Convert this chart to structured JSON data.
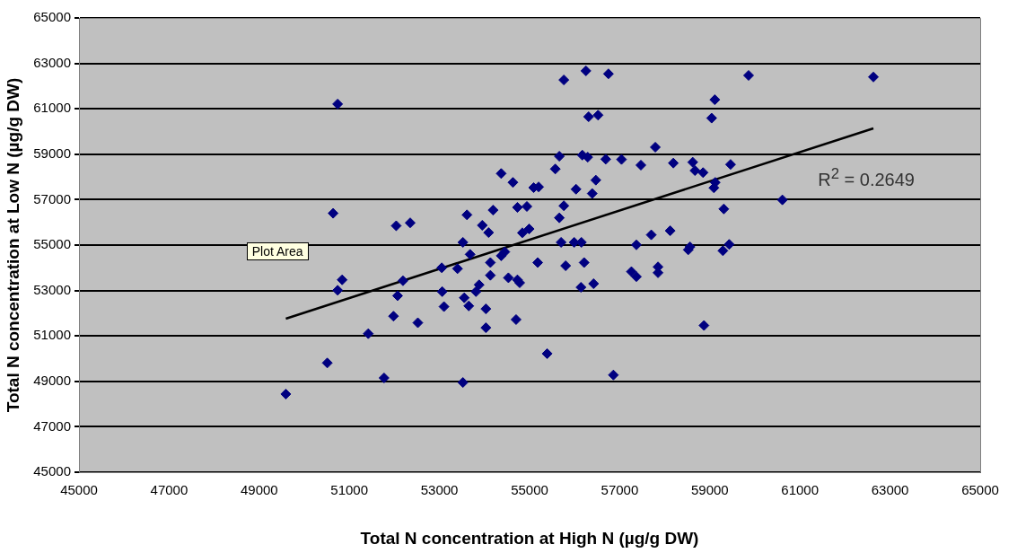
{
  "chart_data": {
    "type": "scatter",
    "xlabel": "Total N concentration at High N (µg/g DW)",
    "ylabel": "Total N concentration at Low N (µg/g DW)",
    "xlim": [
      45000,
      65000
    ],
    "xticks": [
      45000,
      47000,
      49000,
      51000,
      53000,
      55000,
      57000,
      59000,
      61000,
      63000,
      65000
    ],
    "ylim": [
      45000,
      65000
    ],
    "yticks": [
      45000,
      47000,
      49000,
      51000,
      53000,
      55000,
      57000,
      59000,
      61000,
      63000,
      65000
    ],
    "grid": "y",
    "marker": "diamond",
    "legend": false,
    "series": [
      {
        "color": "#000080",
        "x": [
          50740,
          54370,
          54630,
          50640,
          52040,
          52350,
          53610,
          54190,
          53950,
          54090,
          53520,
          53680,
          54450,
          54370,
          53050,
          53400,
          54130,
          54130,
          50840,
          50740,
          52190,
          52070,
          53060,
          54530,
          54730,
          53880,
          53810,
          53550,
          53650,
          53100,
          54030,
          51980,
          52520,
          54030,
          54700,
          51420,
          50510,
          51770,
          53520,
          49590,
          56250,
          55760,
          56750,
          59860,
          59110,
          59040,
          56310,
          56520,
          57790,
          55660,
          56170,
          56290,
          56690,
          57040,
          57470,
          58190,
          58620,
          58670,
          58850,
          59460,
          55570,
          55090,
          55200,
          56030,
          56470,
          56390,
          59120,
          59090,
          54730,
          54940,
          55760,
          55660,
          59310,
          54840,
          54990,
          57700,
          58120,
          55700,
          55990,
          56150,
          57370,
          58560,
          58520,
          59430,
          59290,
          54780,
          55180,
          55800,
          56210,
          56140,
          56420,
          57260,
          57370,
          57850,
          57850,
          58870,
          55390,
          56860,
          62630,
          60610
        ],
        "values": [
          61210,
          58150,
          57760,
          56400,
          55850,
          55980,
          56330,
          56540,
          55870,
          55550,
          55120,
          54590,
          54700,
          54530,
          54000,
          53960,
          54230,
          53670,
          53470,
          53010,
          53430,
          52770,
          52950,
          53560,
          53470,
          53250,
          52950,
          52680,
          52320,
          52290,
          52190,
          51870,
          51580,
          51360,
          51720,
          51100,
          49810,
          49150,
          48950,
          48440,
          62670,
          62270,
          62540,
          62470,
          61400,
          60590,
          60650,
          60720,
          59310,
          58910,
          58960,
          58870,
          58780,
          58770,
          58520,
          58610,
          58650,
          58280,
          58190,
          58550,
          58350,
          57530,
          57560,
          57460,
          57860,
          57270,
          57760,
          57520,
          56660,
          56700,
          56730,
          56200,
          56590,
          55540,
          55710,
          55450,
          55630,
          55120,
          55120,
          55120,
          55010,
          54920,
          54790,
          55030,
          54750,
          53340,
          54230,
          54090,
          54230,
          53140,
          53300,
          53830,
          53610,
          54040,
          53780,
          51460,
          50220,
          49280,
          62400,
          56990
        ]
      },
      {
        "type": "line",
        "color": "#000000",
        "marker": "none",
        "x": [
          49590,
          62630
        ],
        "values": [
          51760,
          60140
        ]
      }
    ],
    "annotations": [
      "R$^{2}$ = 0.2649",
      "Plot Area"
    ]
  }
}
